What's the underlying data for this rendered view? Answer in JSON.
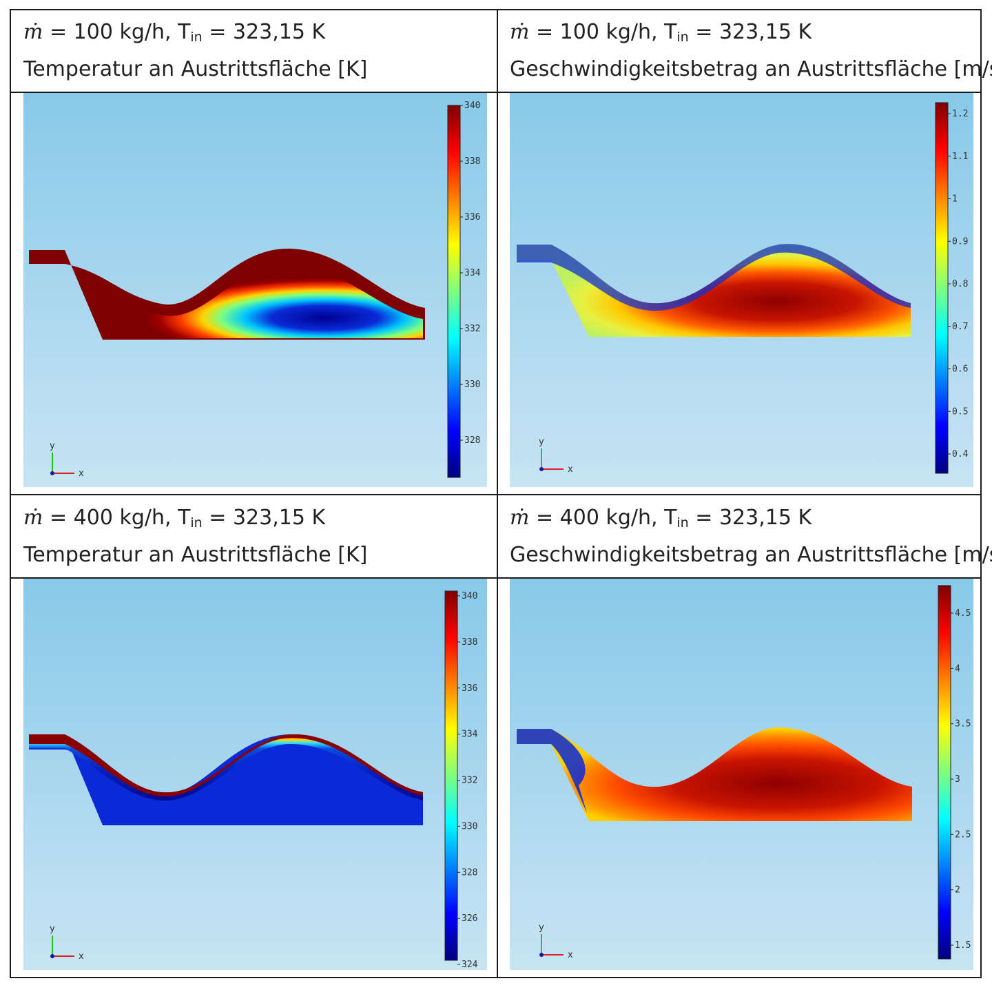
{
  "panels": [
    {
      "line1_pre": "ṁ",
      "line1_a": " = 100 kg/h, T",
      "line1_sub": "in",
      "line1_b": " = 323,15 K",
      "line2": "Temperatur an Austrittsfläche [K]",
      "colorbar_ticks": [
        "340",
        "338",
        "336",
        "334",
        "332",
        "330",
        "328"
      ]
    },
    {
      "line1_pre": "ṁ",
      "line1_a": " = 100 kg/h, T",
      "line1_sub": "in",
      "line1_b": " = 323,15 K",
      "line2": "Geschwindigkeitsbetrag an Austrittsfläche [m/s]",
      "colorbar_ticks": [
        "1.2",
        "1.1",
        "1",
        "0.9",
        "0.8",
        "0.7",
        "0.6",
        "0.5",
        "0.4"
      ]
    },
    {
      "line1_pre": "ṁ",
      "line1_a": " = 400 kg/h, T",
      "line1_sub": "in",
      "line1_b": " = 323,15 K",
      "line2": "Temperatur an Austrittsfläche [K]",
      "colorbar_ticks": [
        "340",
        "338",
        "336",
        "334",
        "332",
        "330",
        "328",
        "326",
        "324"
      ]
    },
    {
      "line1_pre": "ṁ",
      "line1_a": " = 400 kg/h, T",
      "line1_sub": "in",
      "line1_b": " = 323,15 K",
      "line2": "Geschwindigkeitsbetrag an Austrittsfläche [m/s]",
      "colorbar_ticks": [
        "4.5",
        "4",
        "3.5",
        "3",
        "2.5",
        "2",
        "1.5"
      ]
    }
  ],
  "axes": {
    "y": "y",
    "x": "x"
  },
  "colors": {
    "jet_high": "#7f0000",
    "jet_low": "#00007f",
    "background_top": "#87c9e9",
    "background_bottom": "#c6e4f3"
  }
}
